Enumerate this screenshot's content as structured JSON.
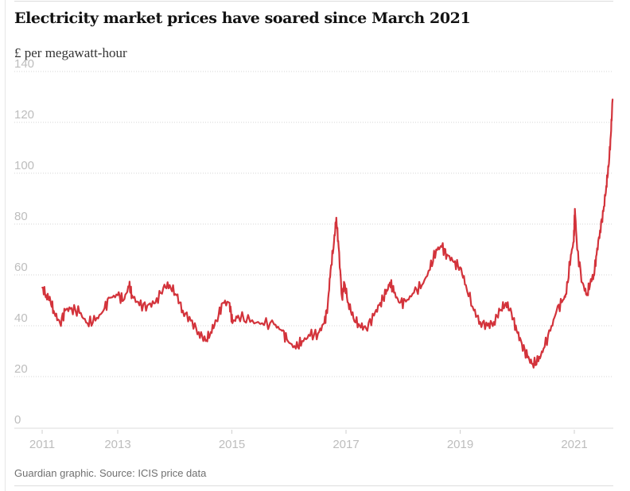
{
  "header": {
    "title": "Electricity market prices have soared since March 2021",
    "subtitle": "£ per megawatt-hour"
  },
  "footer": {
    "source": "Guardian graphic. Source: ICIS price data"
  },
  "chart_data": {
    "type": "line",
    "title": "Electricity market prices have soared since March 2021",
    "subtitle": "£ per megawatt-hour",
    "xlabel": "",
    "ylabel": "£ per megawatt-hour",
    "ylim": [
      0,
      140
    ],
    "xlim": [
      2011.68,
      2021.7
    ],
    "yticks": [
      0,
      20,
      40,
      60,
      80,
      100,
      120,
      140
    ],
    "xticks": [
      {
        "value": 2011.68,
        "label": "2011"
      },
      {
        "value": 2013,
        "label": "2013"
      },
      {
        "value": 2015,
        "label": "2015"
      },
      {
        "value": 2017,
        "label": "2017"
      },
      {
        "value": 2019,
        "label": "2019"
      },
      {
        "value": 2021,
        "label": "2021"
      }
    ],
    "grid": true,
    "legend": "none",
    "line_color": "#d3333b",
    "series": [
      {
        "name": "Electricity market price",
        "points": [
          [
            2011.68,
            55
          ],
          [
            2011.75,
            52
          ],
          [
            2011.82,
            50
          ],
          [
            2011.89,
            45
          ],
          [
            2011.99,
            41
          ],
          [
            2012.08,
            46
          ],
          [
            2012.19,
            47
          ],
          [
            2012.33,
            45
          ],
          [
            2012.47,
            41
          ],
          [
            2012.61,
            42
          ],
          [
            2012.75,
            46
          ],
          [
            2012.86,
            51
          ],
          [
            2013.0,
            52
          ],
          [
            2013.1,
            50
          ],
          [
            2013.2,
            55.6
          ],
          [
            2013.25,
            52
          ],
          [
            2013.38,
            48
          ],
          [
            2013.52,
            48
          ],
          [
            2013.66,
            49
          ],
          [
            2013.8,
            55
          ],
          [
            2013.91,
            56
          ],
          [
            2014.03,
            52
          ],
          [
            2014.14,
            46
          ],
          [
            2014.28,
            42
          ],
          [
            2014.42,
            37.5
          ],
          [
            2014.54,
            34
          ],
          [
            2014.63,
            37.5
          ],
          [
            2014.73,
            42
          ],
          [
            2014.84,
            49
          ],
          [
            2014.96,
            49
          ],
          [
            2015.01,
            41
          ],
          [
            2015.11,
            44
          ],
          [
            2015.32,
            41.5
          ],
          [
            2015.53,
            41
          ],
          [
            2015.74,
            40.5
          ],
          [
            2015.88,
            38
          ],
          [
            2015.98,
            34
          ],
          [
            2016.12,
            31
          ],
          [
            2016.23,
            34
          ],
          [
            2016.37,
            36
          ],
          [
            2016.51,
            37
          ],
          [
            2016.62,
            41
          ],
          [
            2016.68,
            48
          ],
          [
            2016.73,
            62
          ],
          [
            2016.79,
            73
          ],
          [
            2016.83,
            82.5
          ],
          [
            2016.87,
            71
          ],
          [
            2016.93,
            51
          ],
          [
            2016.97,
            57
          ],
          [
            2017.04,
            49
          ],
          [
            2017.13,
            43
          ],
          [
            2017.24,
            40
          ],
          [
            2017.35,
            39
          ],
          [
            2017.49,
            44
          ],
          [
            2017.6,
            49
          ],
          [
            2017.7,
            52.5
          ],
          [
            2017.77,
            57
          ],
          [
            2017.84,
            53
          ],
          [
            2017.94,
            49
          ],
          [
            2018.05,
            49.5
          ],
          [
            2018.19,
            53
          ],
          [
            2018.33,
            56
          ],
          [
            2018.47,
            62
          ],
          [
            2018.58,
            70
          ],
          [
            2018.68,
            71
          ],
          [
            2018.77,
            68
          ],
          [
            2018.89,
            65
          ],
          [
            2019.0,
            63
          ],
          [
            2019.1,
            56
          ],
          [
            2019.24,
            46
          ],
          [
            2019.35,
            41.5
          ],
          [
            2019.48,
            40
          ],
          [
            2019.59,
            41.5
          ],
          [
            2019.7,
            46
          ],
          [
            2019.8,
            49
          ],
          [
            2019.9,
            45
          ],
          [
            2019.99,
            38
          ],
          [
            2020.08,
            33
          ],
          [
            2020.18,
            27.5
          ],
          [
            2020.27,
            25
          ],
          [
            2020.37,
            26
          ],
          [
            2020.46,
            31
          ],
          [
            2020.58,
            38
          ],
          [
            2020.69,
            46
          ],
          [
            2020.8,
            50
          ],
          [
            2020.86,
            52.5
          ],
          [
            2020.94,
            68
          ],
          [
            2020.99,
            73
          ],
          [
            2021.01,
            86
          ],
          [
            2021.05,
            70
          ],
          [
            2021.14,
            57
          ],
          [
            2021.22,
            52
          ],
          [
            2021.28,
            57
          ],
          [
            2021.34,
            60
          ],
          [
            2021.39,
            68
          ],
          [
            2021.45,
            77.5
          ],
          [
            2021.51,
            85
          ],
          [
            2021.56,
            95
          ],
          [
            2021.6,
            102.5
          ],
          [
            2021.64,
            115
          ],
          [
            2021.67,
            129
          ]
        ]
      }
    ]
  }
}
